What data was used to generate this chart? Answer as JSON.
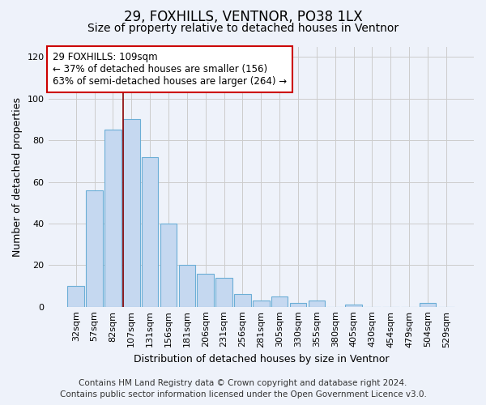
{
  "title1": "29, FOXHILLS, VENTNOR, PO38 1LX",
  "title2": "Size of property relative to detached houses in Ventnor",
  "xlabel": "Distribution of detached houses by size in Ventnor",
  "ylabel": "Number of detached properties",
  "categories": [
    "32sqm",
    "57sqm",
    "82sqm",
    "107sqm",
    "131sqm",
    "156sqm",
    "181sqm",
    "206sqm",
    "231sqm",
    "256sqm",
    "281sqm",
    "305sqm",
    "330sqm",
    "355sqm",
    "380sqm",
    "405sqm",
    "430sqm",
    "454sqm",
    "479sqm",
    "504sqm",
    "529sqm"
  ],
  "values": [
    10,
    56,
    85,
    90,
    72,
    40,
    20,
    16,
    14,
    6,
    3,
    5,
    2,
    3,
    0,
    1,
    0,
    0,
    0,
    2,
    0
  ],
  "bar_color": "#c5d8f0",
  "bar_edge_color": "#6baed6",
  "annotation_text": "29 FOXHILLS: 109sqm\n← 37% of detached houses are smaller (156)\n63% of semi-detached houses are larger (264) →",
  "annotation_box_color": "#ffffff",
  "annotation_box_edge": "#cc0000",
  "property_line_color": "#8b0000",
  "ylim": [
    0,
    125
  ],
  "yticks": [
    0,
    20,
    40,
    60,
    80,
    100,
    120
  ],
  "grid_color": "#cccccc",
  "background_color": "#eef2fa",
  "footer1": "Contains HM Land Registry data © Crown copyright and database right 2024.",
  "footer2": "Contains public sector information licensed under the Open Government Licence v3.0.",
  "title1_fontsize": 12,
  "title2_fontsize": 10,
  "axis_label_fontsize": 9,
  "tick_fontsize": 8,
  "annotation_fontsize": 8.5,
  "footer_fontsize": 7.5
}
